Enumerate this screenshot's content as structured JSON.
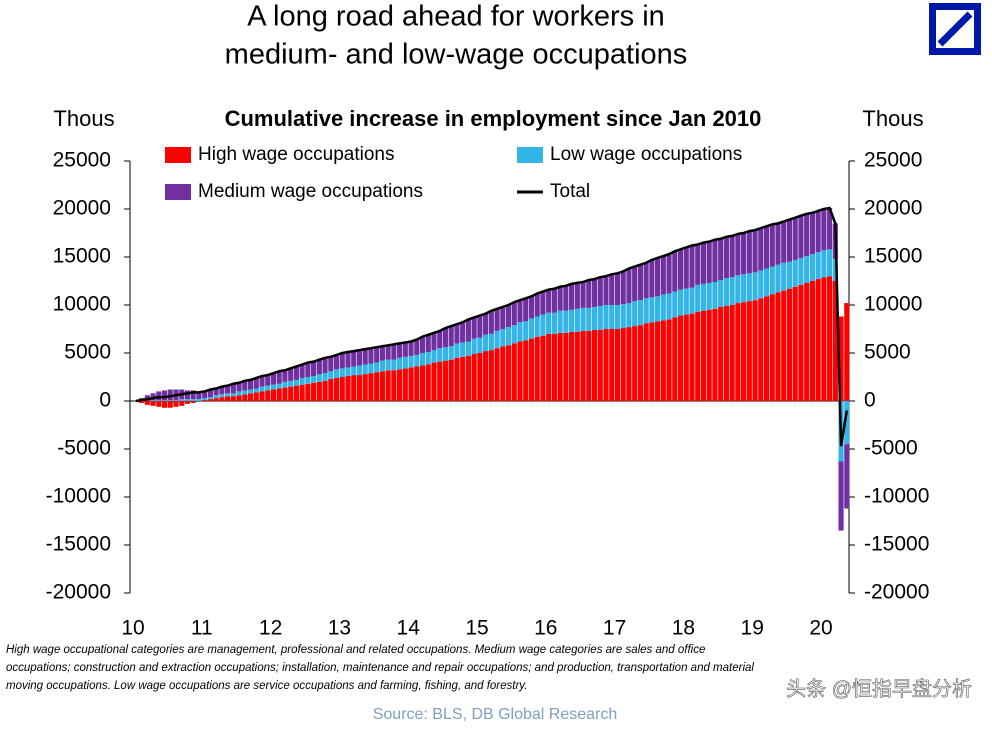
{
  "chart_data": {
    "type": "stacked_bar_line",
    "title": [
      "A long road ahead for workers in",
      "medium- and low-wage occupations"
    ],
    "subtitle": "Cumulative increase in employment since Jan 2010",
    "y_label": "Thous",
    "y2_label": "Thous",
    "footnote": [
      "High wage occupational categories are management, professional and related occupations. Medium wage categories are sales and office",
      "occupations; construction and extraction occupations; installation, maintenance and repair occupations; and production, transportation and material",
      "moving occupations. Low wage occupations are service occupations and farming, fishing, and forestry."
    ],
    "source": "Source: BLS, DB Global Research",
    "watermark": "头条 @恒指早盘分析",
    "ylim": [
      -20000,
      25000
    ],
    "yticks": [
      -20000,
      -15000,
      -10000,
      -5000,
      0,
      5000,
      10000,
      15000,
      20000,
      25000
    ],
    "y2lim": [
      -20000,
      25000
    ],
    "y2ticks": [
      -20000,
      -15000,
      -10000,
      -5000,
      0,
      5000,
      10000,
      15000,
      20000,
      25000
    ],
    "categories": [
      "10",
      null,
      null,
      null,
      null,
      null,
      null,
      null,
      null,
      null,
      null,
      null,
      "11",
      null,
      null,
      null,
      null,
      null,
      null,
      null,
      null,
      null,
      null,
      null,
      "12",
      null,
      null,
      null,
      null,
      null,
      null,
      null,
      null,
      null,
      null,
      null,
      "13",
      null,
      null,
      null,
      null,
      null,
      null,
      null,
      null,
      null,
      null,
      null,
      "14",
      null,
      null,
      null,
      null,
      null,
      null,
      null,
      null,
      null,
      null,
      null,
      "15",
      null,
      null,
      null,
      null,
      null,
      null,
      null,
      null,
      null,
      null,
      null,
      "16",
      null,
      null,
      null,
      null,
      null,
      null,
      null,
      null,
      null,
      null,
      null,
      "17",
      null,
      null,
      null,
      null,
      null,
      null,
      null,
      null,
      null,
      null,
      null,
      "18",
      null,
      null,
      null,
      null,
      null,
      null,
      null,
      null,
      null,
      null,
      null,
      "19",
      null,
      null,
      null,
      null,
      null,
      null,
      null,
      null,
      null,
      null,
      null,
      "20",
      null,
      null,
      null,
      null
    ],
    "series": [
      {
        "name": "High wage occupations",
        "color": "#ff0000",
        "kind": "bar",
        "values": [
          0,
          -200,
          -400,
          -500,
          -600,
          -700,
          -700,
          -600,
          -500,
          -300,
          -200,
          0,
          100,
          200,
          300,
          400,
          500,
          500,
          600,
          700,
          800,
          900,
          1000,
          1100,
          1200,
          1300,
          1400,
          1500,
          1600,
          1700,
          1800,
          1900,
          2000,
          2100,
          2300,
          2400,
          2500,
          2600,
          2700,
          2700,
          2800,
          2900,
          3000,
          3100,
          3200,
          3200,
          3300,
          3400,
          3500,
          3600,
          3700,
          3800,
          4000,
          4100,
          4200,
          4300,
          4500,
          4600,
          4700,
          4900,
          5000,
          5200,
          5300,
          5500,
          5700,
          5800,
          6000,
          6200,
          6300,
          6500,
          6700,
          6800,
          7000,
          7000,
          7100,
          7100,
          7200,
          7200,
          7300,
          7300,
          7400,
          7400,
          7500,
          7500,
          7500,
          7600,
          7700,
          7800,
          7900,
          8100,
          8200,
          8300,
          8400,
          8500,
          8700,
          8900,
          9000,
          9100,
          9300,
          9400,
          9500,
          9600,
          9800,
          9900,
          10000,
          10200,
          10300,
          10400,
          10500,
          10700,
          10900,
          11100,
          11300,
          11500,
          11700,
          11900,
          12100,
          12300,
          12500,
          12700,
          12900,
          13000,
          12500,
          8800,
          10200
        ]
      },
      {
        "name": "Low wage occupations",
        "color": "#33b5e8",
        "kind": "bar",
        "values": [
          0,
          0,
          0,
          100,
          100,
          100,
          100,
          100,
          200,
          200,
          200,
          200,
          200,
          200,
          300,
          300,
          300,
          300,
          400,
          400,
          400,
          400,
          500,
          500,
          500,
          500,
          600,
          600,
          600,
          700,
          700,
          700,
          800,
          800,
          800,
          900,
          900,
          900,
          900,
          1000,
          1000,
          1000,
          1000,
          1100,
          1100,
          1100,
          1200,
          1200,
          1200,
          1200,
          1300,
          1300,
          1300,
          1400,
          1400,
          1400,
          1500,
          1500,
          1500,
          1600,
          1600,
          1700,
          1700,
          1800,
          1800,
          1900,
          1900,
          2000,
          2000,
          2100,
          2100,
          2200,
          2200,
          2200,
          2300,
          2300,
          2300,
          2400,
          2400,
          2400,
          2400,
          2500,
          2500,
          2500,
          2500,
          2500,
          2500,
          2600,
          2600,
          2600,
          2600,
          2600,
          2700,
          2700,
          2700,
          2700,
          2700,
          2700,
          2800,
          2800,
          2800,
          2800,
          2800,
          2900,
          2900,
          2900,
          2900,
          2900,
          2900,
          2900,
          2900,
          2900,
          2900,
          2900,
          2800,
          2800,
          2800,
          2800,
          2800,
          2800,
          2800,
          2800,
          2300,
          -6300,
          -4500
        ]
      },
      {
        "name": "Medium wage occupations",
        "color": "#7030a0",
        "kind": "bar",
        "values": [
          0,
          300,
          600,
          700,
          900,
          1000,
          1100,
          1100,
          1000,
          900,
          900,
          700,
          700,
          800,
          700,
          800,
          800,
          1000,
          900,
          1000,
          1000,
          1100,
          1100,
          1100,
          1200,
          1300,
          1200,
          1300,
          1400,
          1400,
          1500,
          1500,
          1500,
          1600,
          1500,
          1500,
          1600,
          1600,
          1600,
          1600,
          1600,
          1600,
          1600,
          1500,
          1500,
          1600,
          1500,
          1500,
          1500,
          1600,
          1700,
          1800,
          1800,
          1800,
          2000,
          2100,
          2000,
          2100,
          2300,
          2200,
          2300,
          2200,
          2400,
          2300,
          2300,
          2300,
          2400,
          2300,
          2400,
          2300,
          2400,
          2400,
          2400,
          2500,
          2500,
          2600,
          2700,
          2700,
          2700,
          2900,
          2900,
          3000,
          3000,
          3200,
          3300,
          3400,
          3600,
          3600,
          3700,
          3700,
          3900,
          4000,
          4000,
          4100,
          4200,
          4200,
          4300,
          4400,
          4200,
          4300,
          4300,
          4400,
          4300,
          4300,
          4300,
          4300,
          4300,
          4400,
          4400,
          4400,
          4400,
          4400,
          4300,
          4300,
          4400,
          4400,
          4400,
          4400,
          4300,
          4300,
          4300,
          4300,
          3700,
          -7200,
          -6700
        ]
      },
      {
        "name": "Total",
        "color": "#000000",
        "kind": "line",
        "values": [
          0,
          100,
          200,
          300,
          400,
          400,
          500,
          600,
          700,
          800,
          900,
          900,
          1000,
          1200,
          1300,
          1500,
          1600,
          1800,
          1900,
          2100,
          2200,
          2400,
          2600,
          2700,
          2900,
          3100,
          3200,
          3400,
          3600,
          3800,
          4000,
          4100,
          4300,
          4500,
          4600,
          4800,
          5000,
          5100,
          5200,
          5300,
          5400,
          5500,
          5600,
          5700,
          5800,
          5900,
          6000,
          6100,
          6200,
          6400,
          6700,
          6900,
          7100,
          7300,
          7600,
          7800,
          8000,
          8200,
          8500,
          8700,
          8900,
          9100,
          9400,
          9600,
          9800,
          10000,
          10300,
          10500,
          10700,
          10900,
          11200,
          11400,
          11600,
          11700,
          11900,
          12000,
          12200,
          12300,
          12400,
          12600,
          12700,
          12900,
          13000,
          13200,
          13300,
          13500,
          13800,
          14000,
          14200,
          14400,
          14700,
          14900,
          15100,
          15300,
          15600,
          15800,
          16000,
          16200,
          16300,
          16500,
          16600,
          16800,
          16900,
          17100,
          17200,
          17400,
          17500,
          17700,
          17800,
          18000,
          18200,
          18400,
          18500,
          18700,
          18900,
          19100,
          19300,
          19500,
          19600,
          19800,
          20000,
          20100,
          18500,
          -4700,
          -1000
        ]
      }
    ]
  }
}
